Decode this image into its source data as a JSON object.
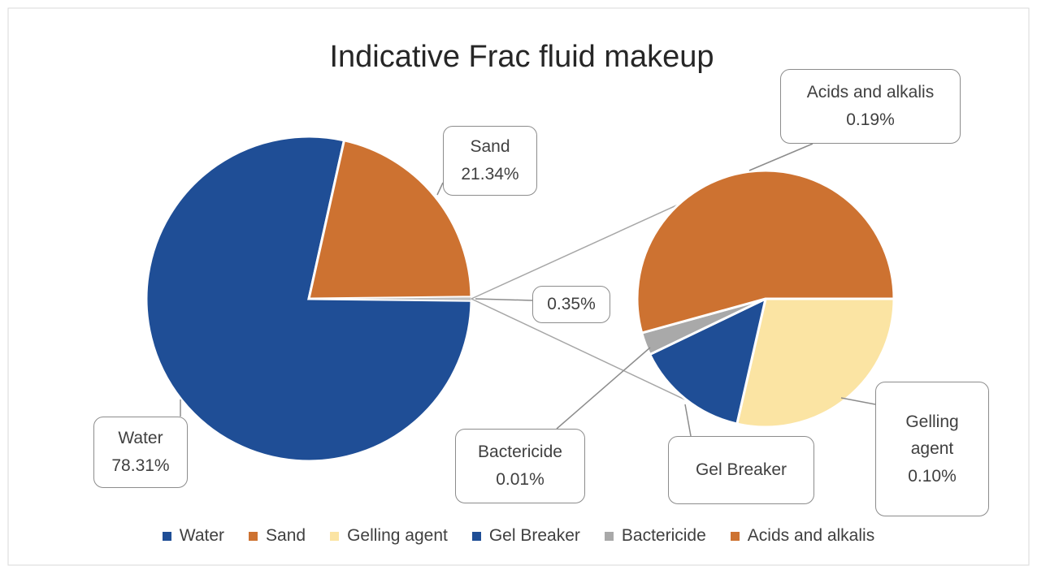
{
  "chart_data": {
    "type": "pie-of-pie",
    "title": "Indicative Frac fluid makeup",
    "categories": [
      "Water",
      "Sand",
      "Gelling agent",
      "Gel Breaker",
      "Bactericide",
      "Acids and alkalis"
    ],
    "values": [
      78.31,
      21.34,
      0.1,
      0.05,
      0.01,
      0.19
    ],
    "value_labels": [
      "78.31%",
      "21.34%",
      "0.10%",
      null,
      "0.01%",
      "0.19%"
    ],
    "colors": [
      "#1f4e96",
      "#cd7231",
      "#fbe4a3",
      "#1f4e96",
      "#a9a9a9",
      "#cd7231"
    ],
    "other_value": 0.35,
    "other_value_label": "0.35%",
    "legend": "bottom"
  }
}
